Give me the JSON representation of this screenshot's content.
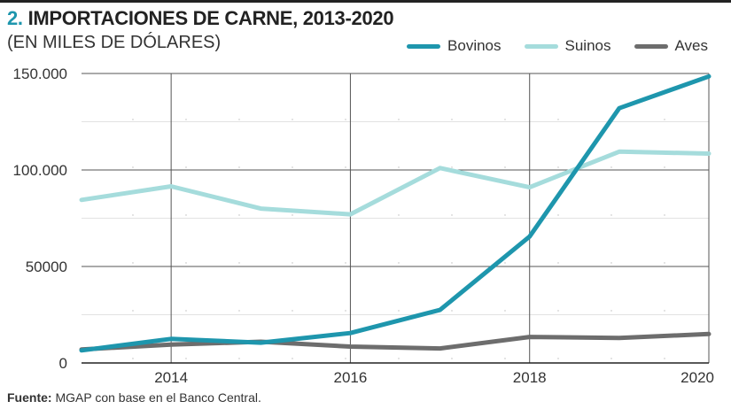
{
  "header": {
    "number": "2.",
    "title": "IMPORTACIONES DE CARNE, 2013-2020",
    "subtitle": "(EN MILES DE DÓLARES)"
  },
  "source": {
    "label": "Fuente:",
    "text": "MGAP con base en el Banco Central."
  },
  "chart_data": {
    "type": "line",
    "title": "IMPORTACIONES DE CARNE, 2013-2020",
    "subtitle": "(EN MILES DE DÓLARES)",
    "x": [
      2013,
      2014,
      2015,
      2016,
      2017,
      2018,
      2019,
      2020
    ],
    "xticks": [
      2014,
      2016,
      2018,
      2020
    ],
    "xtick_labels": [
      "2014",
      "2016",
      "2018",
      "2020"
    ],
    "xlim": [
      2013,
      2020
    ],
    "yticks": [
      0,
      50000,
      100000,
      150000
    ],
    "ytick_labels": [
      "0",
      "50000",
      "100.000",
      "150.000"
    ],
    "ylim": [
      0,
      150000
    ],
    "grid": true,
    "legend_position": "top-right",
    "series": [
      {
        "name": "Bovinos",
        "color": "#1e96ad",
        "values": [
          6500,
          12500,
          10500,
          15500,
          27500,
          65500,
          132000,
          148500
        ]
      },
      {
        "name": "Suinos",
        "color": "#a5dcdc",
        "values": [
          84500,
          91500,
          80000,
          77000,
          101000,
          91000,
          109500,
          108500
        ]
      },
      {
        "name": "Aves",
        "color": "#6d6d6d",
        "values": [
          7000,
          9500,
          11000,
          8500,
          7500,
          13500,
          13000,
          15000
        ]
      }
    ]
  }
}
